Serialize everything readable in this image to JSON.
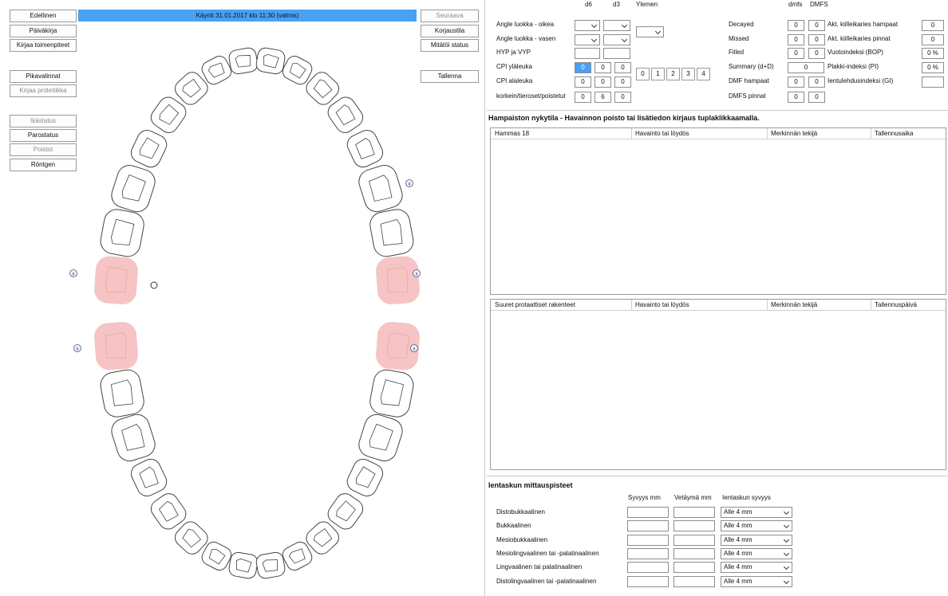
{
  "left_buttons": [
    "Edellinen",
    "Päiväkirja",
    "Kirjaa toimenpiteet",
    "Pikavalinnat",
    "Kirjaa protetiikka",
    "Ikästatus",
    "Parostatus",
    "Poistot",
    "Röntgen"
  ],
  "visit_bar": "Käynti 31.01.2017 klo 11:30 (valmis)",
  "right_buttons": [
    "Seuraava",
    "Korjaustila",
    "Mitätöi status",
    "Tallenna"
  ],
  "occlusion": {
    "headers": [
      "d6",
      "d3",
      "Ylemen"
    ],
    "labels": [
      "Angle luokka - oikea",
      "Angle luokka - vasen",
      "HYP ja VYP",
      "CPI yläleuka",
      "CPI alaleuka",
      "korkein/tieroset/poistetut"
    ],
    "cpi_upper": [
      0,
      0,
      0
    ],
    "cpi_lower": [
      0,
      0,
      0
    ],
    "teeth_counts": [
      0,
      6,
      0
    ],
    "cpi_buttons": [
      0,
      1,
      2,
      3,
      4
    ]
  },
  "dmf": {
    "headers": [
      "dmfs",
      "DMFS"
    ],
    "rows": [
      {
        "label": "Decayed",
        "values": [
          0,
          0
        ]
      },
      {
        "label": "Missed",
        "values": [
          0,
          0
        ]
      },
      {
        "label": "Filled",
        "values": [
          0,
          0
        ]
      },
      {
        "label": "Summary (d+D)",
        "values": [
          0
        ]
      },
      {
        "label": "DMF hampaat",
        "values": [
          0,
          0
        ]
      },
      {
        "label": "DMFS pinnat",
        "values": [
          0,
          0
        ]
      }
    ]
  },
  "indices": [
    {
      "label": "Akt. kiilleikaries hampaat",
      "value": "0"
    },
    {
      "label": "Akt. kiilleikaries pinnat",
      "value": "0"
    },
    {
      "label": "Vuotoindeksi (BOP)",
      "value": "0 %"
    },
    {
      "label": "Plakki-indeksi (PI)",
      "value": "0 %"
    },
    {
      "label": "Ientulehdusindeksi (GI)"
    }
  ],
  "status_heading": "Hampaiston nykytila - Havainnon poisto tai lisätiedon kirjaus tuplaklikkaamalla.",
  "findings_table": {
    "columns": [
      "Hammas 18",
      "Havainto tai löydös",
      "Merkinnän tekijä",
      "Tallennusaika"
    ]
  },
  "prosthetics_table": {
    "columns": [
      "Suuret protaattiset rakenteet",
      "Havainto tai löydös",
      "Merkinnän tekijä",
      "Tallennuspäivä"
    ]
  },
  "pocket": {
    "title": "Ientaskun mittauspisteet",
    "columns": [
      "Syvyys mm",
      "Vetäymä mm",
      "Ientaskun syvyys"
    ],
    "rows": [
      {
        "label": "Distobukkaalinen",
        "depth_class": "Alle 4 mm"
      },
      {
        "label": "Bukkaalinen",
        "depth_class": "Alle 4 mm"
      },
      {
        "label": "Mesiobukkaalinen",
        "depth_class": "Alle 4 mm"
      },
      {
        "label": "Mesiolingvaalinen tai -palatinaalinen",
        "depth_class": "Alle 4 mm"
      },
      {
        "label": "Lingvaalinen tai palatinaalinen",
        "depth_class": "Alle 4 mm"
      },
      {
        "label": "Distolingvaalinen tai -palatinaalinen",
        "depth_class": "Alle 4 mm"
      }
    ]
  }
}
